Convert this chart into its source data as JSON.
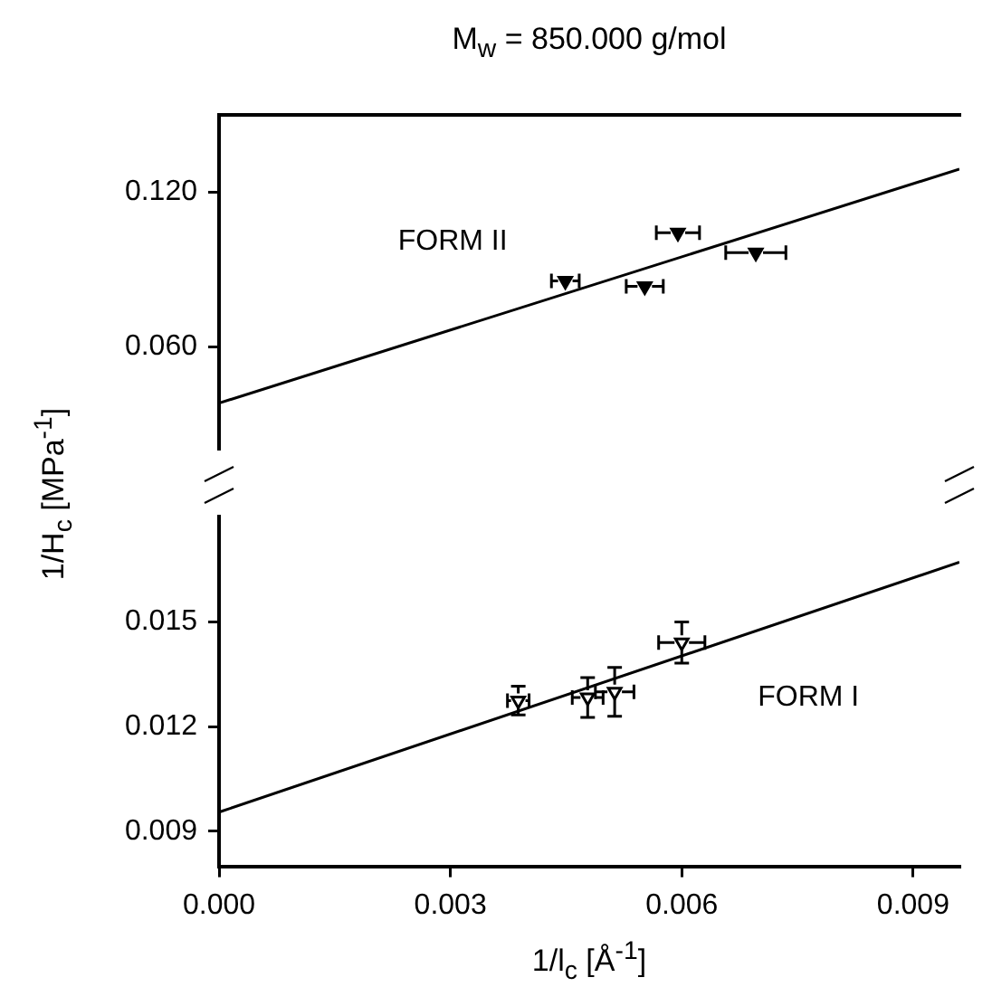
{
  "chart_data": [
    {
      "type": "scatter",
      "title": "M$_{w}$ = 850.000 g/mol",
      "ylabel": "1/H$_{c}$ [MPa$^{-1}$]",
      "xlim": [
        0,
        0.0096
      ],
      "ylim": [
        0.02,
        0.15
      ],
      "yticks": [
        {
          "value": 0.06,
          "label": "0.060"
        },
        {
          "value": 0.12,
          "label": "0.120"
        }
      ],
      "tick_labels": "y",
      "series": [
        {
          "type": "scatter",
          "name": "FORM II",
          "marker": "triangle",
          "color": "#000000",
          "x": [
            0.00449,
            0.00552,
            0.00595,
            0.00696
          ],
          "values": [
            0.0855,
            0.0834,
            0.1043,
            0.0965
          ],
          "xerrors": [
            0.00018,
            0.00024,
            0.00028,
            0.00039
          ]
        },
        {
          "type": "line",
          "marker": "none",
          "color": "#000000",
          "x": [
            0,
            0.0096
          ],
          "values": [
            0.038,
            0.129
          ]
        }
      ]
    },
    {
      "type": "scatter",
      "xlabel": "1/l$_{c}$ [Å$^{-1}$]",
      "xlim": [
        0,
        0.0096
      ],
      "xticks": [
        {
          "value": 0,
          "label": "0.000"
        },
        {
          "value": 0.003,
          "label": "0.003"
        },
        {
          "value": 0.006,
          "label": "0.006"
        },
        {
          "value": 0.009,
          "label": "0.009"
        }
      ],
      "ylim": [
        0.008,
        0.018
      ],
      "yticks": [
        {
          "value": 0.009,
          "label": "0.009"
        },
        {
          "value": 0.012,
          "label": "0.012"
        },
        {
          "value": 0.015,
          "label": "0.015"
        }
      ],
      "series": [
        {
          "type": "scatter",
          "name": "FORM I",
          "marker": "triangle",
          "color": "#000000",
          "x": [
            0.00388,
            0.00478,
            0.00513,
            0.006
          ],
          "values": [
            0.01274,
            0.01283,
            0.01299,
            0.0144
          ],
          "errors": [
            0.00041,
            0.00057,
            0.0007,
            0.00059
          ],
          "xerrors": [
            0.00014,
            0.0002,
            0.00025,
            0.0003
          ]
        },
        {
          "type": "line",
          "marker": "none",
          "color": "#000000",
          "x": [
            0,
            0.0096
          ],
          "values": [
            0.00955,
            0.0167
          ]
        }
      ]
    }
  ]
}
